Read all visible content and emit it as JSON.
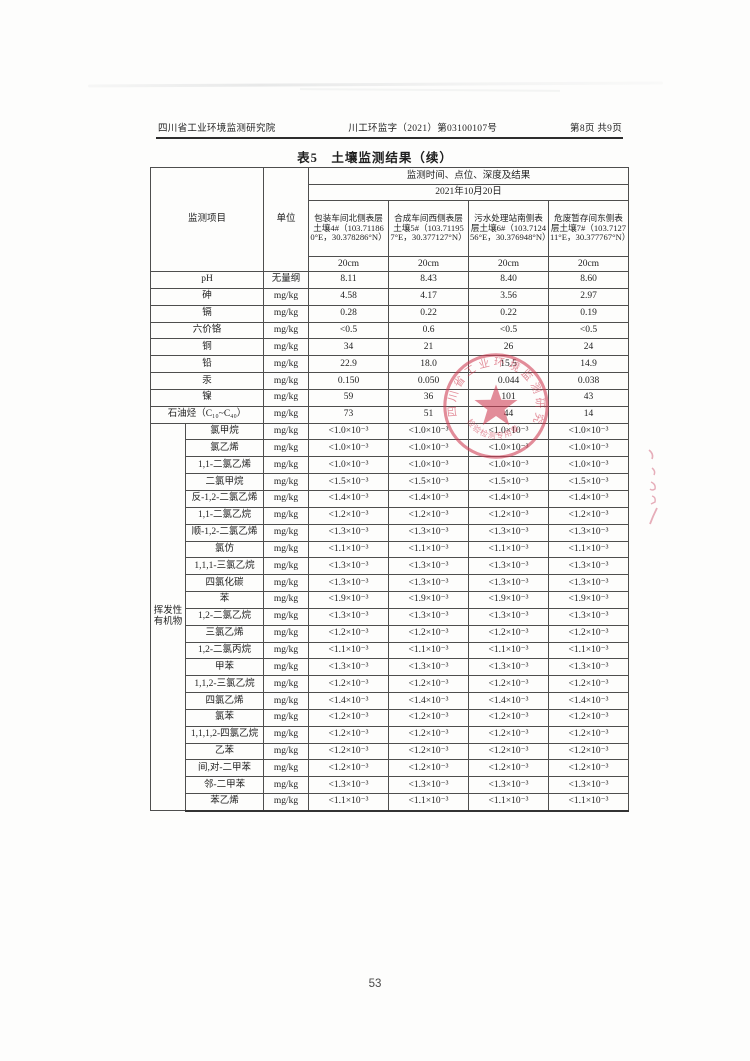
{
  "header": {
    "org": "四川省工业环境监测研究院",
    "doc_no": "川工环监字（2021）第03100107号",
    "page_info": "第8页 共9页"
  },
  "title": "表5　土壤监测结果（续）",
  "table": {
    "col_item": "监测项目",
    "col_unit": "单位",
    "header_result": "监测时间、点位、深度及结果",
    "header_date": "2021年10月20日",
    "locations": [
      "包装车间北侧表层土壤4#（103.711860°E，30.378286°N）",
      "合成车间西侧表层土壤5#（103.711957°E，30.377127°N）",
      "污水处理站南侧表层土壤6#（103.712456°E，30.376948°N）",
      "危废暂存间东侧表层土壤7#（103.712711°E，30.377767°N）"
    ],
    "depths": [
      "20cm",
      "20cm",
      "20cm",
      "20cm"
    ],
    "simple_rows": [
      {
        "name": "pH",
        "unit": "无量纲",
        "values": [
          "8.11",
          "8.43",
          "8.40",
          "8.60"
        ]
      },
      {
        "name": "砷",
        "unit": "mg/kg",
        "values": [
          "4.58",
          "4.17",
          "3.56",
          "2.97"
        ]
      },
      {
        "name": "镉",
        "unit": "mg/kg",
        "values": [
          "0.28",
          "0.22",
          "0.22",
          "0.19"
        ]
      },
      {
        "name": "六价铬",
        "unit": "mg/kg",
        "values": [
          "<0.5",
          "0.6",
          "<0.5",
          "<0.5"
        ]
      },
      {
        "name": "铜",
        "unit": "mg/kg",
        "values": [
          "34",
          "21",
          "26",
          "24"
        ]
      },
      {
        "name": "铅",
        "unit": "mg/kg",
        "values": [
          "22.9",
          "18.0",
          "15.5",
          "14.9"
        ]
      },
      {
        "name": "汞",
        "unit": "mg/kg",
        "values": [
          "0.150",
          "0.050",
          "0.044",
          "0.038"
        ]
      },
      {
        "name": "镍",
        "unit": "mg/kg",
        "values": [
          "59",
          "36",
          "101",
          "43"
        ]
      },
      {
        "name": "石油烃（C₁₀~C₄₀）",
        "unit": "mg/kg",
        "values": [
          "73",
          "51",
          "44",
          "14"
        ]
      }
    ],
    "voc_group": "挥发性有机物",
    "voc_rows": [
      {
        "name": "氯甲烷",
        "unit": "mg/kg",
        "values": [
          "<1.0×10⁻³",
          "<1.0×10⁻³",
          "<1.0×10⁻³",
          "<1.0×10⁻³"
        ]
      },
      {
        "name": "氯乙烯",
        "unit": "mg/kg",
        "values": [
          "<1.0×10⁻³",
          "<1.0×10⁻³",
          "<1.0×10⁻³",
          "<1.0×10⁻³"
        ]
      },
      {
        "name": "1,1-二氯乙烯",
        "unit": "mg/kg",
        "values": [
          "<1.0×10⁻³",
          "<1.0×10⁻³",
          "<1.0×10⁻³",
          "<1.0×10⁻³"
        ]
      },
      {
        "name": "二氯甲烷",
        "unit": "mg/kg",
        "values": [
          "<1.5×10⁻³",
          "<1.5×10⁻³",
          "<1.5×10⁻³",
          "<1.5×10⁻³"
        ]
      },
      {
        "name": "反-1,2-二氯乙烯",
        "unit": "mg/kg",
        "values": [
          "<1.4×10⁻³",
          "<1.4×10⁻³",
          "<1.4×10⁻³",
          "<1.4×10⁻³"
        ]
      },
      {
        "name": "1,1-二氯乙烷",
        "unit": "mg/kg",
        "values": [
          "<1.2×10⁻³",
          "<1.2×10⁻³",
          "<1.2×10⁻³",
          "<1.2×10⁻³"
        ]
      },
      {
        "name": "顺-1,2-二氯乙烯",
        "unit": "mg/kg",
        "values": [
          "<1.3×10⁻³",
          "<1.3×10⁻³",
          "<1.3×10⁻³",
          "<1.3×10⁻³"
        ]
      },
      {
        "name": "氯仿",
        "unit": "mg/kg",
        "values": [
          "<1.1×10⁻³",
          "<1.1×10⁻³",
          "<1.1×10⁻³",
          "<1.1×10⁻³"
        ]
      },
      {
        "name": "1,1,1-三氯乙烷",
        "unit": "mg/kg",
        "values": [
          "<1.3×10⁻³",
          "<1.3×10⁻³",
          "<1.3×10⁻³",
          "<1.3×10⁻³"
        ]
      },
      {
        "name": "四氯化碳",
        "unit": "mg/kg",
        "values": [
          "<1.3×10⁻³",
          "<1.3×10⁻³",
          "<1.3×10⁻³",
          "<1.3×10⁻³"
        ]
      },
      {
        "name": "苯",
        "unit": "mg/kg",
        "values": [
          "<1.9×10⁻³",
          "<1.9×10⁻³",
          "<1.9×10⁻³",
          "<1.9×10⁻³"
        ]
      },
      {
        "name": "1,2-二氯乙烷",
        "unit": "mg/kg",
        "values": [
          "<1.3×10⁻³",
          "<1.3×10⁻³",
          "<1.3×10⁻³",
          "<1.3×10⁻³"
        ]
      },
      {
        "name": "三氯乙烯",
        "unit": "mg/kg",
        "values": [
          "<1.2×10⁻³",
          "<1.2×10⁻³",
          "<1.2×10⁻³",
          "<1.2×10⁻³"
        ]
      },
      {
        "name": "1,2-二氯丙烷",
        "unit": "mg/kg",
        "values": [
          "<1.1×10⁻³",
          "<1.1×10⁻³",
          "<1.1×10⁻³",
          "<1.1×10⁻³"
        ]
      },
      {
        "name": "甲苯",
        "unit": "mg/kg",
        "values": [
          "<1.3×10⁻³",
          "<1.3×10⁻³",
          "<1.3×10⁻³",
          "<1.3×10⁻³"
        ]
      },
      {
        "name": "1,1,2-三氯乙烷",
        "unit": "mg/kg",
        "values": [
          "<1.2×10⁻³",
          "<1.2×10⁻³",
          "<1.2×10⁻³",
          "<1.2×10⁻³"
        ]
      },
      {
        "name": "四氯乙烯",
        "unit": "mg/kg",
        "values": [
          "<1.4×10⁻³",
          "<1.4×10⁻³",
          "<1.4×10⁻³",
          "<1.4×10⁻³"
        ]
      },
      {
        "name": "氯苯",
        "unit": "mg/kg",
        "values": [
          "<1.2×10⁻³",
          "<1.2×10⁻³",
          "<1.2×10⁻³",
          "<1.2×10⁻³"
        ]
      },
      {
        "name": "1,1,1,2-四氯乙烷",
        "unit": "mg/kg",
        "values": [
          "<1.2×10⁻³",
          "<1.2×10⁻³",
          "<1.2×10⁻³",
          "<1.2×10⁻³"
        ]
      },
      {
        "name": "乙苯",
        "unit": "mg/kg",
        "values": [
          "<1.2×10⁻³",
          "<1.2×10⁻³",
          "<1.2×10⁻³",
          "<1.2×10⁻³"
        ]
      },
      {
        "name": "间,对-二甲苯",
        "unit": "mg/kg",
        "values": [
          "<1.2×10⁻³",
          "<1.2×10⁻³",
          "<1.2×10⁻³",
          "<1.2×10⁻³"
        ]
      },
      {
        "name": "邻-二甲苯",
        "unit": "mg/kg",
        "values": [
          "<1.3×10⁻³",
          "<1.3×10⁻³",
          "<1.3×10⁻³",
          "<1.3×10⁻³"
        ]
      },
      {
        "name": "苯乙烯",
        "unit": "mg/kg",
        "values": [
          "<1.1×10⁻³",
          "<1.1×10⁻³",
          "<1.1×10⁻³",
          "<1.1×10⁻³"
        ]
      }
    ]
  },
  "stamp": {
    "ring_text": "四川省工业环境监测研究院",
    "bottom_text": "检验检测专用章",
    "color": "#cf3b52"
  },
  "footer": {
    "page_number": "53"
  }
}
